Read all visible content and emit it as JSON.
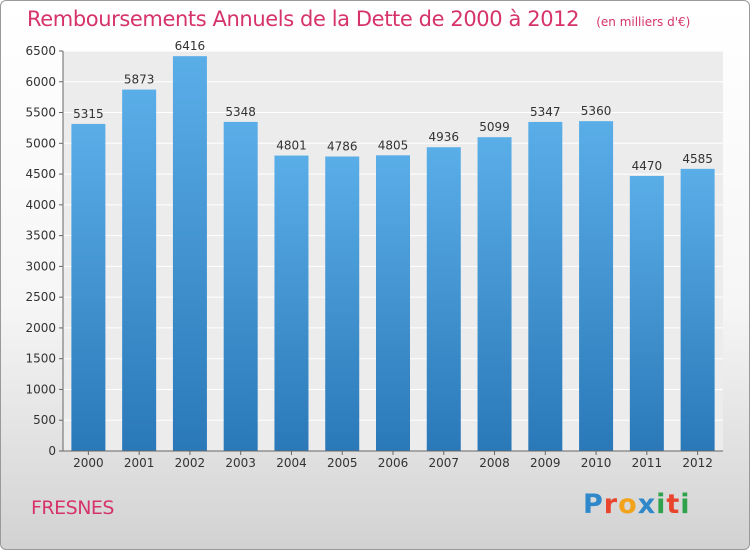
{
  "chart_data": {
    "type": "bar",
    "title": "Remboursements Annuels de la Dette de 2000 à 2012",
    "unit": "(en milliers d'€)",
    "categories": [
      "2000",
      "2001",
      "2002",
      "2003",
      "2004",
      "2005",
      "2006",
      "2007",
      "2008",
      "2009",
      "2010",
      "2011",
      "2012"
    ],
    "values": [
      5315,
      5873,
      6416,
      5348,
      4801,
      4786,
      4805,
      4936,
      5099,
      5347,
      5360,
      4470,
      4585
    ],
    "ylim": [
      0,
      6500
    ],
    "yticks": [
      0,
      500,
      1000,
      1500,
      2000,
      2500,
      3000,
      3500,
      4000,
      4500,
      5000,
      5500,
      6000,
      6500
    ],
    "grid": true,
    "bar_color": "#3f93d6"
  },
  "footer": {
    "city": "FRESNES",
    "brand": {
      "letters": [
        "P",
        "r",
        "o",
        "x",
        "i",
        "t",
        "i"
      ],
      "colors": [
        "#2f88c9",
        "#e8452c",
        "#f2a31b",
        "#2f88c9",
        "#2fa34b",
        "#e8452c",
        "#2fa34b"
      ]
    }
  },
  "colors": {
    "accent": "#d6336c"
  }
}
